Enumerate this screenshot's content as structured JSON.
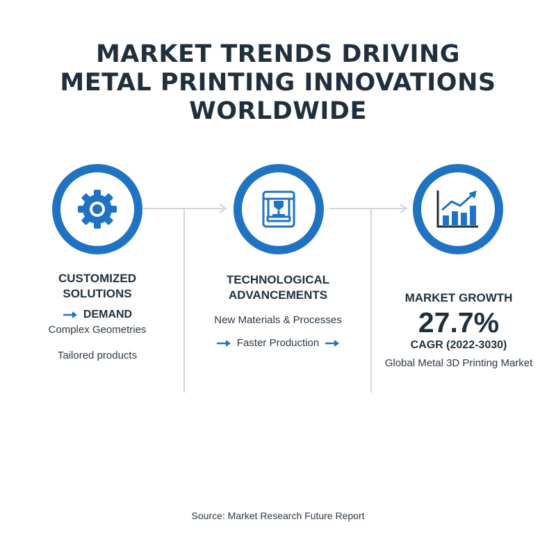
{
  "title": {
    "line1": "MARKET TRENDS DRIVING",
    "line2": "METAL PRINTING INNOVATIONS",
    "line3": "WORLDWIDE"
  },
  "colors": {
    "accent": "#1f73c2",
    "text": "#1f2f3e",
    "connector": "#cfd5da"
  },
  "columns": [
    {
      "icon": "gear-icon",
      "heading_line1": "CUSTOMIZED",
      "heading_line2": "SOLUTIONS",
      "label": "DEMAND",
      "detail1": "Complex Geometries",
      "detail2": "Tailored products"
    },
    {
      "icon": "3d-printer-icon",
      "heading_line1": "TECHNOLOGICAL",
      "heading_line2": "ADVANCEMENTS",
      "detail1": "New Materials & Processes",
      "detail2": "Faster Production"
    },
    {
      "icon": "growth-chart-icon",
      "heading": "MARKET GROWTH",
      "value": "27.7%",
      "label": "CAGR (2022-3030)",
      "detail1": "Global Metal 3D Printing Market"
    }
  ],
  "source": "Source: Market Research Future Report"
}
